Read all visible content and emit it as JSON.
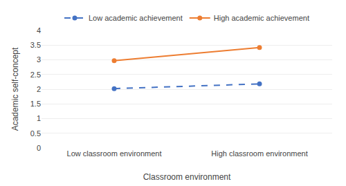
{
  "chart_data": {
    "type": "line",
    "xlabel": "Classroom environment",
    "ylabel": "Academic self-concept",
    "categories": [
      "Low classroom environment",
      "High classroom environment"
    ],
    "series": [
      {
        "name": "Low academic achievement",
        "color": "#4472C4",
        "values": [
          2.02,
          2.18
        ],
        "line_style": "dashed",
        "marker": "circle"
      },
      {
        "name": "High academic achievement",
        "color": "#ED7D31",
        "values": [
          2.97,
          3.42
        ],
        "line_style": "solid",
        "marker": "circle"
      }
    ],
    "ylim": [
      0,
      4
    ],
    "yticks": [
      0,
      0.5,
      1,
      1.5,
      2,
      2.5,
      3,
      3.5,
      4
    ],
    "grid": true,
    "legend": "top"
  }
}
